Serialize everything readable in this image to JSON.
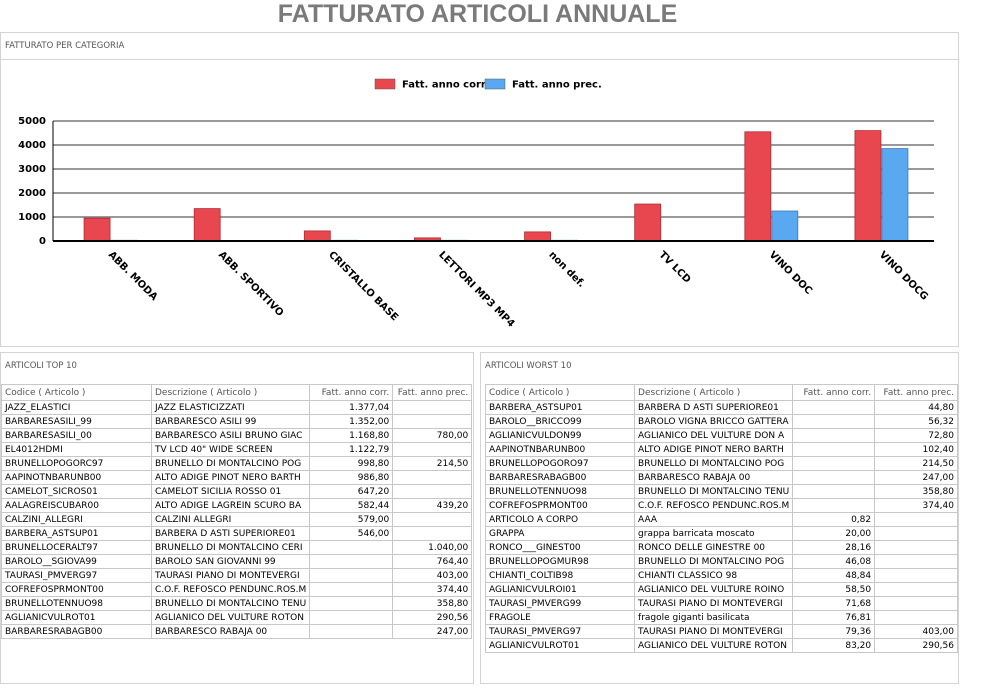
{
  "title": "FATTURATO ARTICOLI ANNUALE",
  "chart_panel": {
    "title": "FATTURATO PER CATEGORIA"
  },
  "chart_data": {
    "type": "bar",
    "categories": [
      "ABB. MODA",
      "ABB. SPORTIVO",
      "CRISTALLO BASE",
      "LETTORI MP3 MP4",
      "non def.",
      "TV LCD",
      "VINO DOC",
      "VINO DOCG"
    ],
    "series": [
      {
        "name": "Fatt. anno corr.",
        "color": "#e8474f",
        "values": [
          950,
          1350,
          420,
          130,
          380,
          1540,
          4550,
          4600
        ]
      },
      {
        "name": "Fatt. anno prec.",
        "color": "#5aa9f0",
        "values": [
          30,
          20,
          30,
          30,
          30,
          20,
          1250,
          3850
        ]
      }
    ],
    "ylim": [
      0,
      5000
    ],
    "yticks": [
      0,
      1000,
      2000,
      3000,
      4000,
      5000
    ],
    "grid": true,
    "legend": "top"
  },
  "top_table": {
    "title": "ARTICOLI TOP 10",
    "columns": [
      "Codice ( Articolo )",
      "Descrizione ( Articolo )",
      "Fatt. anno corr.",
      "Fatt. anno prec."
    ],
    "rows": [
      [
        "JAZZ_ELASTICI",
        "JAZZ ELASTICIZZATI",
        "1.377,04",
        null
      ],
      [
        "BARBARESASILI_99",
        "BARBARESCO ASILI 99",
        "1.352,00",
        null
      ],
      [
        "BARBARESASILI_00",
        "BARBARESCO ASILI BRUNO GIAC",
        "1.168,80",
        "780,00"
      ],
      [
        "EL4012HDMI",
        "TV LCD 40\" WIDE SCREEN",
        "1.122,79",
        null
      ],
      [
        "BRUNELLOPOGORC97",
        "BRUNELLO DI MONTALCINO POG",
        "998,80",
        "214,50"
      ],
      [
        "AAPINOTNBARUNB00",
        "ALTO ADIGE PINOT NERO BARTH",
        "986,80",
        null
      ],
      [
        "CAMELOT_SICROS01",
        "CAMELOT SICILIA ROSSO 01",
        "647,20",
        null
      ],
      [
        "AALAGREISCUBAR00",
        "ALTO ADIGE LAGREIN SCURO BA",
        "582,44",
        "439,20"
      ],
      [
        "CALZINI_ALLEGRI",
        "CALZINI ALLEGRI",
        "579,00",
        null
      ],
      [
        "BARBERA_ASTSUP01",
        "BARBERA D ASTI SUPERIORE01",
        "546,00",
        null
      ],
      [
        "BRUNELLOCERALT97",
        "BRUNELLO DI MONTALCINO CERI",
        null,
        "1.040,00"
      ],
      [
        "BAROLO__SGIOVA99",
        "BAROLO SAN GIOVANNI 99",
        null,
        "764,40"
      ],
      [
        "TAURASI_PMVERG97",
        "TAURASI PIANO DI MONTEVERGI",
        null,
        "403,00"
      ],
      [
        "COFREFOSPRMONT00",
        "C.O.F. REFOSCO PENDUNC.ROS.M",
        null,
        "374,40"
      ],
      [
        "BRUNELLOTENNUO98",
        "BRUNELLO DI MONTALCINO TENU",
        null,
        "358,80"
      ],
      [
        "AGLIANICVULROT01",
        "AGLIANICO DEL VULTURE ROTON",
        null,
        "290,56"
      ],
      [
        "BARBARESRABAGB00",
        "BARBARESCO RABAJA 00",
        null,
        "247,00"
      ]
    ]
  },
  "worst_table": {
    "title": "ARTICOLI WORST 10",
    "columns": [
      "Codice ( Articolo )",
      "Descrizione ( Articolo )",
      "Fatt. anno corr.",
      "Fatt. anno prec."
    ],
    "rows": [
      [
        "BARBERA_ASTSUP01",
        "BARBERA D ASTI SUPERIORE01",
        null,
        "44,80"
      ],
      [
        "BAROLO__BRICCO99",
        "BAROLO VIGNA BRICCO GATTERA",
        null,
        "56,32"
      ],
      [
        "AGLIANICVULDON99",
        "AGLIANICO DEL VULTURE DON A",
        null,
        "72,80"
      ],
      [
        "AAPINOTNBARUNB00",
        "ALTO ADIGE PINOT NERO BARTH",
        null,
        "102,40"
      ],
      [
        "BRUNELLOPOGORO97",
        "BRUNELLO DI MONTALCINO POG",
        null,
        "214,50"
      ],
      [
        "BARBARESRABAGB00",
        "BARBARESCO RABAJA 00",
        null,
        "247,00"
      ],
      [
        "BRUNELLOTENNUO98",
        "BRUNELLO DI MONTALCINO TENU",
        null,
        "358,80"
      ],
      [
        "COFREFOSPRMONT00",
        "C.O.F. REFOSCO PENDUNC.ROS.M",
        null,
        "374,40"
      ],
      [
        "ARTICOLO A CORPO",
        "AAA",
        "0,82",
        null
      ],
      [
        "GRAPPA",
        "grappa barricata moscato",
        "20,00",
        null
      ],
      [
        "RONCO___GINEST00",
        "RONCO DELLE GINESTRE 00",
        "28,16",
        null
      ],
      [
        "BRUNELLOPOGMUR98",
        "BRUNELLO DI MONTALCINO POG",
        "46,08",
        null
      ],
      [
        "CHIANTI_COLTIB98",
        "CHIANTI CLASSICO 98",
        "48,84",
        null
      ],
      [
        "AGLIANICVULROI01",
        "AGLIANICO DEL VULTURE ROINO",
        "58,50",
        null
      ],
      [
        "TAURASI_PMVERG99",
        "TAURASI PIANO DI MONTEVERGI",
        "71,68",
        null
      ],
      [
        "FRAGOLE",
        "fragole giganti basilicata",
        "76,81",
        null
      ],
      [
        "TAURASI_PMVERG97",
        "TAURASI PIANO DI MONTEVERGI",
        "79,36",
        "403,00"
      ],
      [
        "AGLIANICVULROT01",
        "AGLIANICO DEL VULTURE ROTON",
        "83,20",
        "290,56"
      ]
    ]
  }
}
